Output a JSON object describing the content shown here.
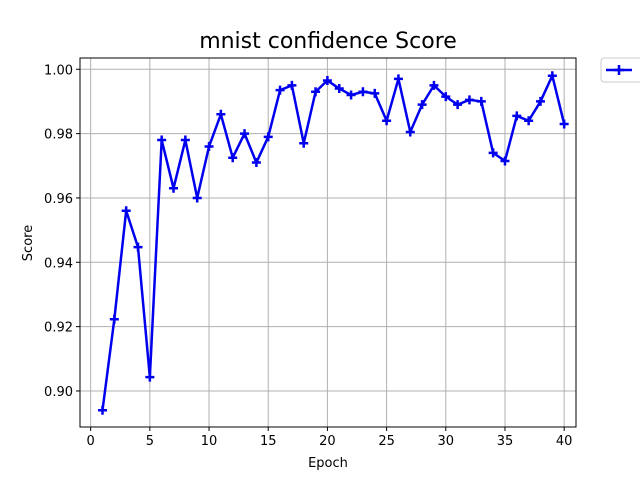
{
  "chart_data": {
    "type": "line",
    "title": "mnist confidence Score",
    "xlabel": "Epoch",
    "ylabel": "Score",
    "xlim": [
      -0.9,
      41.0
    ],
    "ylim": [
      0.8888,
      1.0035
    ],
    "xticks": [
      0,
      5,
      10,
      15,
      20,
      25,
      30,
      35,
      40
    ],
    "yticks": [
      0.9,
      0.92,
      0.94,
      0.96,
      0.98,
      1.0
    ],
    "ytick_labels": [
      "0.90",
      "0.92",
      "0.94",
      "0.96",
      "0.98",
      "1.00"
    ],
    "grid": true,
    "legend": "outside-top-right",
    "series": [
      {
        "color": "#0000ee",
        "marker": "plus",
        "x": [
          1,
          2,
          3,
          4,
          5,
          6,
          7,
          8,
          9,
          10,
          11,
          12,
          13,
          14,
          15,
          16,
          17,
          18,
          19,
          20,
          21,
          22,
          23,
          24,
          25,
          26,
          27,
          28,
          29,
          30,
          31,
          32,
          33,
          34,
          35,
          36,
          37,
          38,
          39,
          40
        ],
        "values": [
          0.894,
          0.9223,
          0.956,
          0.9447,
          0.9043,
          0.978,
          0.963,
          0.978,
          0.96,
          0.976,
          0.986,
          0.9725,
          0.98,
          0.971,
          0.979,
          0.9935,
          0.995,
          0.977,
          0.993,
          0.9965,
          0.994,
          0.992,
          0.993,
          0.9925,
          0.984,
          0.997,
          0.9805,
          0.989,
          0.995,
          0.9915,
          0.989,
          0.9905,
          0.99,
          0.974,
          0.9715,
          0.9855,
          0.984,
          0.99,
          0.998,
          0.983
        ]
      }
    ]
  }
}
